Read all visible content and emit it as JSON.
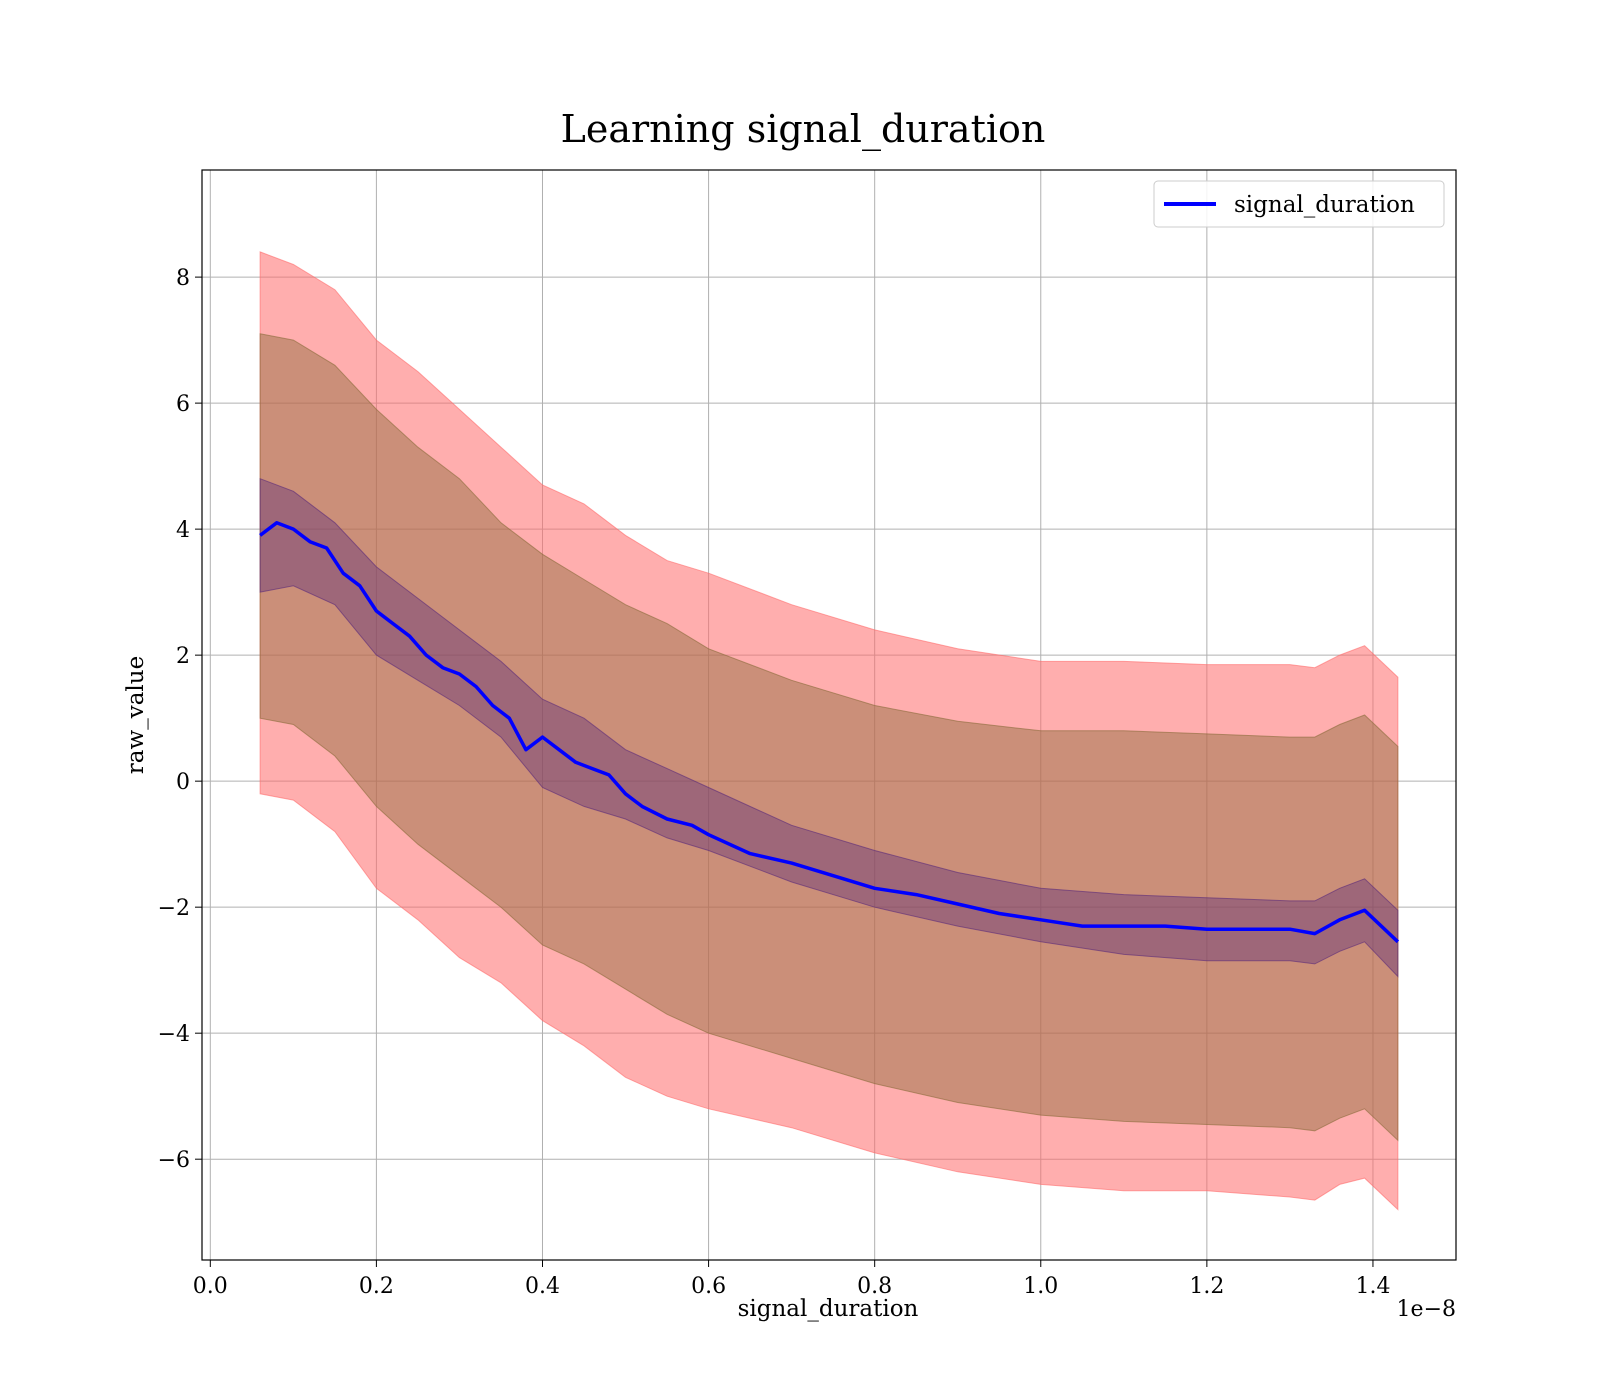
{
  "chart_data": {
    "type": "line",
    "title": "Learning signal_duration",
    "xlabel": "signal_duration",
    "ylabel": "raw_value",
    "x_offset_label": "1e−8",
    "xlim": [
      -0.01,
      1.5
    ],
    "ylim": [
      -7.6,
      9.7
    ],
    "x_ticks": [
      0.0,
      0.2,
      0.4,
      0.6,
      0.8,
      1.0,
      1.2,
      1.4
    ],
    "x_tick_labels": [
      "0.0",
      "0.2",
      "0.4",
      "0.6",
      "0.8",
      "1.0",
      "1.2",
      "1.4"
    ],
    "y_ticks": [
      -6,
      -4,
      -2,
      0,
      2,
      4,
      6,
      8
    ],
    "y_tick_labels": [
      "−6",
      "−4",
      "−2",
      "0",
      "2",
      "4",
      "6",
      "8"
    ],
    "grid": true,
    "legend": {
      "position": "top-right",
      "entries": [
        "signal_duration"
      ]
    },
    "colors": {
      "line": "#0000ff",
      "outer_band": "#ff6b6b",
      "middle_band": "#8b6a3a",
      "inner_band": "#5a2a7a",
      "grid": "#b0b0b0"
    },
    "series": [
      {
        "name": "signal_duration",
        "x": [
          0.06,
          0.08,
          0.1,
          0.12,
          0.14,
          0.16,
          0.18,
          0.2,
          0.22,
          0.24,
          0.26,
          0.28,
          0.3,
          0.32,
          0.34,
          0.36,
          0.38,
          0.4,
          0.42,
          0.44,
          0.46,
          0.48,
          0.5,
          0.52,
          0.55,
          0.58,
          0.6,
          0.65,
          0.7,
          0.75,
          0.8,
          0.85,
          0.9,
          0.95,
          1.0,
          1.05,
          1.1,
          1.15,
          1.2,
          1.25,
          1.3,
          1.33,
          1.36,
          1.39,
          1.43
        ],
        "y": [
          3.9,
          4.1,
          4.0,
          3.8,
          3.7,
          3.3,
          3.1,
          2.7,
          2.5,
          2.3,
          2.0,
          1.8,
          1.7,
          1.5,
          1.2,
          1.0,
          0.5,
          0.7,
          0.5,
          0.3,
          0.2,
          0.1,
          -0.2,
          -0.4,
          -0.6,
          -0.7,
          -0.85,
          -1.15,
          -1.3,
          -1.5,
          -1.7,
          -1.8,
          -1.95,
          -2.1,
          -2.2,
          -2.3,
          -2.3,
          -2.3,
          -2.35,
          -2.35,
          -2.35,
          -2.42,
          -2.2,
          -2.05,
          -2.55
        ]
      }
    ],
    "bands": [
      {
        "name": "outer",
        "x": [
          0.06,
          0.1,
          0.15,
          0.2,
          0.25,
          0.3,
          0.35,
          0.4,
          0.45,
          0.5,
          0.55,
          0.6,
          0.7,
          0.8,
          0.9,
          1.0,
          1.1,
          1.2,
          1.3,
          1.33,
          1.36,
          1.39,
          1.43
        ],
        "upper": [
          8.4,
          8.2,
          7.8,
          7.0,
          6.5,
          5.9,
          5.3,
          4.7,
          4.4,
          3.9,
          3.5,
          3.3,
          2.8,
          2.4,
          2.1,
          1.9,
          1.9,
          1.85,
          1.85,
          1.8,
          2.0,
          2.15,
          1.65
        ],
        "lower": [
          -0.2,
          -0.3,
          -0.8,
          -1.7,
          -2.2,
          -2.8,
          -3.2,
          -3.8,
          -4.2,
          -4.7,
          -5.0,
          -5.2,
          -5.5,
          -5.9,
          -6.2,
          -6.4,
          -6.5,
          -6.5,
          -6.6,
          -6.65,
          -6.4,
          -6.3,
          -6.8
        ]
      },
      {
        "name": "middle",
        "x": [
          0.06,
          0.1,
          0.15,
          0.2,
          0.25,
          0.3,
          0.35,
          0.4,
          0.45,
          0.5,
          0.55,
          0.6,
          0.7,
          0.8,
          0.9,
          1.0,
          1.1,
          1.2,
          1.3,
          1.33,
          1.36,
          1.39,
          1.43
        ],
        "upper": [
          7.1,
          7.0,
          6.6,
          5.9,
          5.3,
          4.8,
          4.1,
          3.6,
          3.2,
          2.8,
          2.5,
          2.1,
          1.6,
          1.2,
          0.95,
          0.8,
          0.8,
          0.75,
          0.7,
          0.7,
          0.9,
          1.05,
          0.55
        ],
        "lower": [
          1.0,
          0.9,
          0.4,
          -0.4,
          -1.0,
          -1.5,
          -2.0,
          -2.6,
          -2.9,
          -3.3,
          -3.7,
          -4.0,
          -4.4,
          -4.8,
          -5.1,
          -5.3,
          -5.4,
          -5.45,
          -5.5,
          -5.55,
          -5.35,
          -5.2,
          -5.7
        ]
      },
      {
        "name": "inner",
        "x": [
          0.06,
          0.1,
          0.15,
          0.2,
          0.25,
          0.3,
          0.35,
          0.4,
          0.45,
          0.5,
          0.55,
          0.6,
          0.7,
          0.8,
          0.9,
          1.0,
          1.1,
          1.2,
          1.3,
          1.33,
          1.36,
          1.39,
          1.43
        ],
        "upper": [
          4.8,
          4.6,
          4.1,
          3.4,
          2.9,
          2.4,
          1.9,
          1.3,
          1.0,
          0.5,
          0.2,
          -0.1,
          -0.7,
          -1.1,
          -1.45,
          -1.7,
          -1.8,
          -1.85,
          -1.9,
          -1.9,
          -1.7,
          -1.55,
          -2.05
        ],
        "lower": [
          3.0,
          3.1,
          2.8,
          2.0,
          1.6,
          1.2,
          0.7,
          -0.1,
          -0.4,
          -0.6,
          -0.9,
          -1.1,
          -1.6,
          -2.0,
          -2.3,
          -2.55,
          -2.75,
          -2.85,
          -2.85,
          -2.9,
          -2.7,
          -2.55,
          -3.1
        ]
      }
    ]
  }
}
